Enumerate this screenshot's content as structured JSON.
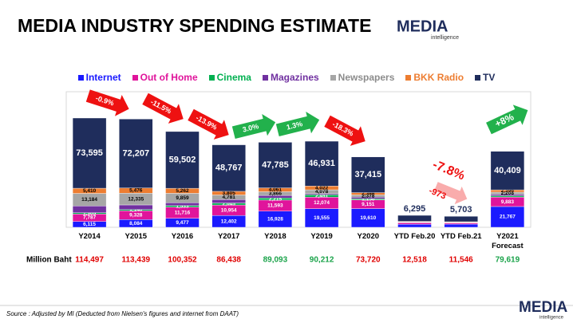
{
  "title": "MEDIA INDUSTRY SPENDING ESTIMATE",
  "logo": {
    "name": "MEDIA",
    "sub": "intelligence"
  },
  "source": "Source :  Adjusted by MI (Deducted  from Nielsen's figures and internet from DAAT)",
  "chart_data": {
    "type": "stacked-bar",
    "categories": [
      "Y2014",
      "Y2015",
      "Y2016",
      "Y2017",
      "Y2018",
      "Y2019",
      "Y2020",
      "YTD Feb.20",
      "YTD Feb.21",
      "Y2021 Forecast"
    ],
    "series": [
      {
        "name": "Internet",
        "color": "#1a1aff",
        "values": [
          6115,
          8084,
          9477,
          12402,
          16928,
          19555,
          19610,
          3150,
          3315,
          21767
        ],
        "value_labels": [
          "6,115",
          "8,084",
          "9,477",
          "12,402",
          "16,928",
          "19,555",
          "19,610",
          null,
          null,
          "21,767"
        ]
      },
      {
        "name": "Out of Home",
        "color": "#e0149b",
        "values": [
          7787,
          9328,
          11716,
          10954,
          11593,
          12074,
          9151,
          1550,
          1300,
          9883
        ],
        "value_labels": [
          "7,787",
          "9,328",
          "11,716",
          "10,954",
          "11,593",
          "12,074",
          "9,151",
          null,
          null,
          "9,883"
        ]
      },
      {
        "name": "Cinema",
        "color": "#00b050",
        "values": [
          1305,
          1140,
          1533,
          2045,
          2215,
          2451,
          1156,
          230,
          50,
          1400
        ],
        "value_labels": [
          "1,305",
          "1,140",
          "1,533",
          "2,045",
          "2,215",
          "2,451",
          "1,156",
          null,
          null,
          null
        ]
      },
      {
        "name": "Magazines",
        "color": "#7030a0",
        "values": [
          7101,
          4869,
          3003,
          3684,
          2645,
          1101,
          1622,
          200,
          150,
          1556
        ],
        "value_labels": [
          null,
          null,
          null,
          null,
          null,
          null,
          null,
          null,
          null,
          null
        ]
      },
      {
        "name": "Newspapers",
        "color": "#a6a6a6",
        "values": [
          13184,
          12335,
          9859,
          4781,
          3866,
          4078,
          2378,
          550,
          500,
          2208
        ],
        "value_labels": [
          "13,184",
          "12,335",
          "9,859",
          "4,781",
          "3,866",
          "4,078",
          "2,378",
          null,
          null,
          "2,208"
        ]
      },
      {
        "name": "BKK Radio",
        "color": "#ed7d31",
        "values": [
          5410,
          5476,
          5262,
          3805,
          4061,
          4022,
          2388,
          543,
          528,
          2396
        ],
        "value_labels": [
          "5,410",
          "5,476",
          "5,262",
          "3,805",
          "4,061",
          "4,022",
          "2,388",
          null,
          null,
          "2,396"
        ]
      },
      {
        "name": "TV",
        "color": "#1f2d5c",
        "values": [
          73595,
          72207,
          59502,
          48767,
          47785,
          46931,
          37415,
          6295,
          5703,
          40409
        ],
        "value_labels": [
          "73,595",
          "72,207",
          "59,502",
          "48,767",
          "47,785",
          "46,931",
          "37,415",
          "6,295",
          "5,703",
          "40,409"
        ]
      }
    ],
    "totals": {
      "label": "Million Baht",
      "values": [
        114497,
        113439,
        100352,
        86438,
        89093,
        90212,
        73720,
        12518,
        11546,
        79619
      ],
      "value_labels": [
        "114,497",
        "113,439",
        "100,352",
        "86,438",
        "89,093",
        "90,212",
        "73,720",
        "12,518",
        "11,546",
        "79,619"
      ],
      "colors": [
        "#e00000",
        "#e00000",
        "#e00000",
        "#e00000",
        "#1aa34a",
        "#1aa34a",
        "#e00000",
        "#e00000",
        "#e00000",
        "#1aa34a"
      ]
    },
    "annotations": [
      {
        "text": "-0.9%",
        "color": "#ee1111"
      },
      {
        "text": "-11.5%",
        "color": "#ee1111"
      },
      {
        "text": "-13.9%",
        "color": "#ee1111"
      },
      {
        "text": "3.0%",
        "color": "#22b14c"
      },
      {
        "text": "1.3%",
        "color": "#22b14c"
      },
      {
        "text": "-18.3%",
        "color": "#ee1111"
      },
      {
        "text": "-7.8%",
        "color": "#ee1111"
      },
      {
        "text": "-973",
        "color": "#ee1111"
      },
      {
        "text": "+8%",
        "color": "#22b14c"
      }
    ]
  }
}
